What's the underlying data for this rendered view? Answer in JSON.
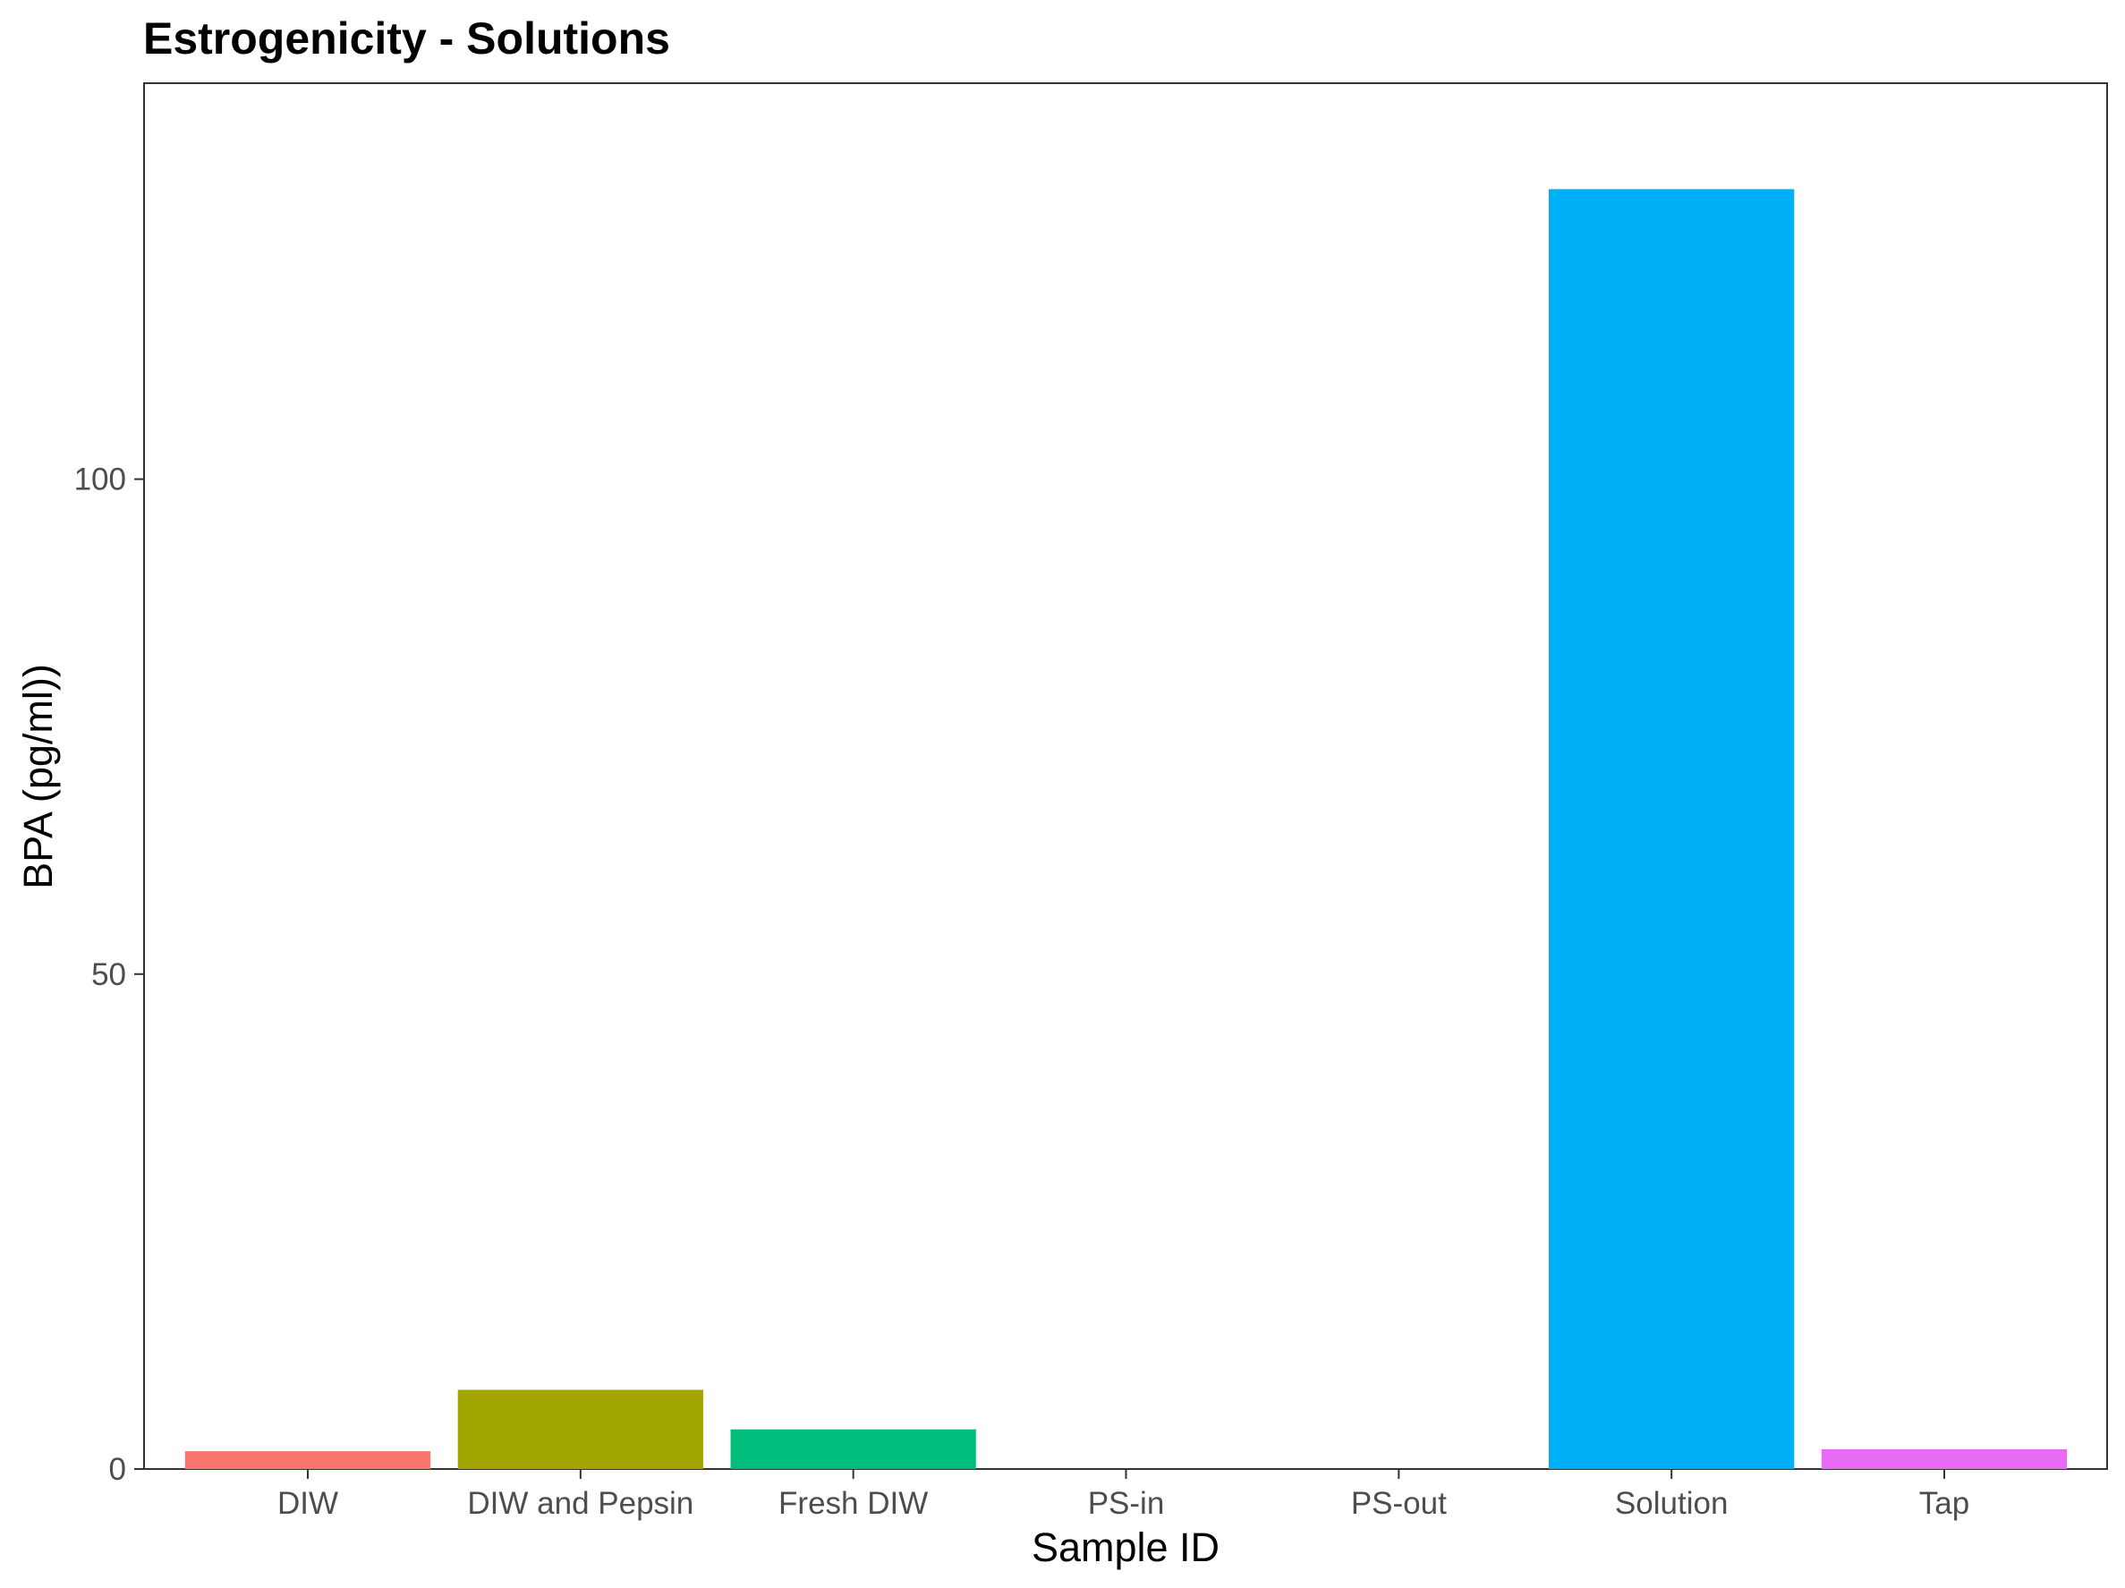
{
  "chart_data": {
    "type": "bar",
    "title": "Estrogenicity - Solutions",
    "xlabel": "Sample ID",
    "ylabel": "BPA (pg/ml))",
    "categories": [
      "DIW",
      "DIW and Pepsin",
      "Fresh DIW",
      "PS-in",
      "PS-out",
      "Solution",
      "Tap"
    ],
    "values": [
      1.8,
      8.0,
      4.0,
      0,
      0,
      129.3,
      2.0
    ],
    "colors": [
      "#F8766D",
      "#A3A500",
      "#00BF7D",
      "#00B0F6",
      "#00B0F6",
      "#00B0F6",
      "#E76BF3"
    ],
    "ylim": [
      0,
      140
    ],
    "yticks": [
      0,
      50,
      100
    ],
    "grid": false,
    "legend": "none"
  }
}
